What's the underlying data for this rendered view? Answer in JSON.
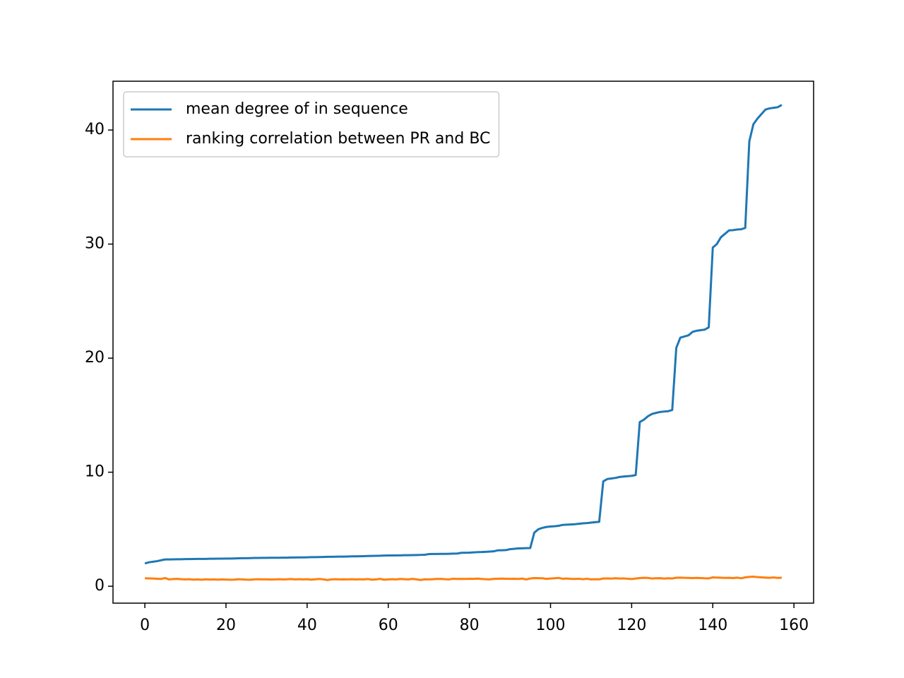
{
  "chart_data": {
    "type": "line",
    "x": [
      0,
      1,
      2,
      3,
      4,
      5,
      6,
      7,
      8,
      9,
      10,
      11,
      12,
      13,
      14,
      15,
      16,
      17,
      18,
      19,
      20,
      21,
      22,
      23,
      24,
      25,
      26,
      27,
      28,
      29,
      30,
      31,
      32,
      33,
      34,
      35,
      36,
      37,
      38,
      39,
      40,
      41,
      42,
      43,
      44,
      45,
      46,
      47,
      48,
      49,
      50,
      51,
      52,
      53,
      54,
      55,
      56,
      57,
      58,
      59,
      60,
      61,
      62,
      63,
      64,
      65,
      66,
      67,
      68,
      69,
      70,
      71,
      72,
      73,
      74,
      75,
      76,
      77,
      78,
      79,
      80,
      81,
      82,
      83,
      84,
      85,
      86,
      87,
      88,
      89,
      90,
      91,
      92,
      93,
      94,
      95,
      96,
      97,
      98,
      99,
      100,
      101,
      102,
      103,
      104,
      105,
      106,
      107,
      108,
      109,
      110,
      111,
      112,
      113,
      114,
      115,
      116,
      117,
      118,
      119,
      120,
      121,
      122,
      123,
      124,
      125,
      126,
      127,
      128,
      129,
      130,
      131,
      132,
      133,
      134,
      135,
      136,
      137,
      138,
      139,
      140,
      141,
      142,
      143,
      144,
      145,
      146,
      147,
      148,
      149,
      150,
      151,
      152,
      153,
      154,
      155,
      156,
      157
    ],
    "series": [
      {
        "name": "mean degree of in sequence",
        "color": "#1f77b4",
        "values": [
          2.0,
          2.1,
          2.15,
          2.2,
          2.28,
          2.35,
          2.35,
          2.36,
          2.37,
          2.37,
          2.38,
          2.38,
          2.39,
          2.4,
          2.4,
          2.4,
          2.41,
          2.41,
          2.42,
          2.42,
          2.43,
          2.43,
          2.44,
          2.45,
          2.46,
          2.46,
          2.47,
          2.48,
          2.48,
          2.49,
          2.49,
          2.5,
          2.5,
          2.5,
          2.51,
          2.51,
          2.52,
          2.52,
          2.53,
          2.53,
          2.54,
          2.55,
          2.55,
          2.56,
          2.57,
          2.58,
          2.58,
          2.59,
          2.6,
          2.6,
          2.61,
          2.62,
          2.62,
          2.63,
          2.64,
          2.65,
          2.66,
          2.67,
          2.68,
          2.69,
          2.7,
          2.7,
          2.71,
          2.71,
          2.72,
          2.72,
          2.73,
          2.74,
          2.75,
          2.76,
          2.82,
          2.83,
          2.83,
          2.84,
          2.84,
          2.85,
          2.86,
          2.87,
          2.93,
          2.94,
          2.95,
          2.97,
          2.99,
          3.0,
          3.02,
          3.04,
          3.06,
          3.15,
          3.16,
          3.17,
          3.25,
          3.28,
          3.32,
          3.33,
          3.34,
          3.35,
          4.7,
          5.0,
          5.12,
          5.2,
          5.24,
          5.26,
          5.3,
          5.38,
          5.4,
          5.42,
          5.44,
          5.48,
          5.52,
          5.54,
          5.58,
          5.62,
          5.65,
          9.2,
          9.4,
          9.45,
          9.5,
          9.58,
          9.62,
          9.65,
          9.68,
          9.75,
          14.4,
          14.6,
          14.9,
          15.1,
          15.2,
          15.28,
          15.32,
          15.35,
          15.45,
          20.9,
          21.8,
          21.9,
          22.0,
          22.3,
          22.4,
          22.45,
          22.5,
          22.7,
          29.7,
          30.0,
          30.6,
          30.9,
          31.2,
          31.22,
          31.28,
          31.3,
          31.42,
          39.0,
          40.5,
          41.0,
          41.4,
          41.8,
          41.9,
          41.95,
          42.0,
          42.2
        ]
      },
      {
        "name": "ranking correlation between PR and BC",
        "color": "#ff7f0e",
        "values": [
          0.7,
          0.69,
          0.68,
          0.66,
          0.64,
          0.72,
          0.6,
          0.63,
          0.65,
          0.62,
          0.6,
          0.62,
          0.58,
          0.6,
          0.57,
          0.61,
          0.59,
          0.6,
          0.58,
          0.6,
          0.59,
          0.57,
          0.58,
          0.62,
          0.6,
          0.58,
          0.57,
          0.6,
          0.62,
          0.6,
          0.61,
          0.59,
          0.6,
          0.62,
          0.6,
          0.61,
          0.63,
          0.6,
          0.62,
          0.6,
          0.62,
          0.58,
          0.61,
          0.64,
          0.6,
          0.55,
          0.6,
          0.62,
          0.6,
          0.61,
          0.6,
          0.62,
          0.6,
          0.61,
          0.6,
          0.63,
          0.58,
          0.6,
          0.65,
          0.57,
          0.6,
          0.62,
          0.6,
          0.64,
          0.62,
          0.6,
          0.65,
          0.6,
          0.55,
          0.61,
          0.6,
          0.62,
          0.64,
          0.65,
          0.62,
          0.6,
          0.66,
          0.64,
          0.65,
          0.64,
          0.66,
          0.65,
          0.67,
          0.64,
          0.62,
          0.6,
          0.65,
          0.66,
          0.67,
          0.66,
          0.65,
          0.66,
          0.64,
          0.67,
          0.6,
          0.68,
          0.72,
          0.71,
          0.7,
          0.65,
          0.68,
          0.7,
          0.73,
          0.66,
          0.68,
          0.65,
          0.64,
          0.66,
          0.62,
          0.66,
          0.6,
          0.62,
          0.61,
          0.68,
          0.69,
          0.67,
          0.7,
          0.68,
          0.69,
          0.66,
          0.63,
          0.68,
          0.72,
          0.74,
          0.73,
          0.68,
          0.7,
          0.71,
          0.67,
          0.7,
          0.68,
          0.75,
          0.76,
          0.74,
          0.73,
          0.72,
          0.73,
          0.72,
          0.7,
          0.69,
          0.78,
          0.76,
          0.75,
          0.73,
          0.74,
          0.72,
          0.76,
          0.7,
          0.78,
          0.82,
          0.84,
          0.8,
          0.78,
          0.76,
          0.74,
          0.77,
          0.73,
          0.75
        ]
      }
    ],
    "xlim": [
      -7.85,
      164.85
    ],
    "ylim": [
      -1.48,
      44.28
    ],
    "xticks": [
      0,
      20,
      40,
      60,
      80,
      100,
      120,
      140,
      160
    ],
    "yticks": [
      0,
      10,
      20,
      30,
      40
    ],
    "legend": "upper left"
  }
}
